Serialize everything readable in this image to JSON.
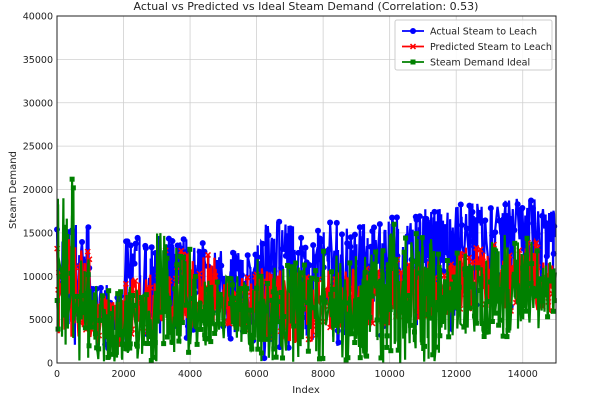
{
  "chart_data": {
    "type": "line",
    "title": "Actual vs Predicted vs Ideal Steam Demand (Correlation: 0.53)",
    "xlabel": "Index",
    "ylabel": "Steam Demand",
    "xlim": [
      0,
      15000
    ],
    "ylim": [
      0,
      40000
    ],
    "xticks": [
      0,
      2000,
      4000,
      6000,
      8000,
      10000,
      12000,
      14000
    ],
    "yticks": [
      0,
      5000,
      10000,
      15000,
      20000,
      25000,
      30000,
      35000,
      40000
    ],
    "grid": true,
    "legend_position": "top-right",
    "segment_index_step": 500,
    "series": [
      {
        "name": "Actual Steam to Leach",
        "color": "#0000ff",
        "marker": "circle",
        "ranges": [
          [
            1000,
            16000
          ],
          [
            1500,
            16500
          ],
          [
            500,
            9000
          ],
          [
            1000,
            8000
          ],
          [
            2000,
            14500
          ],
          [
            1500,
            14000
          ],
          [
            1000,
            15000
          ],
          [
            1500,
            14500
          ],
          [
            2000,
            14000
          ],
          [
            2000,
            13500
          ],
          [
            1000,
            13000
          ],
          [
            1500,
            12500
          ],
          [
            0,
            17000
          ],
          [
            0,
            16500
          ],
          [
            0,
            16000
          ],
          [
            0,
            15500
          ],
          [
            0,
            16500
          ],
          [
            0,
            16000
          ],
          [
            0,
            16000
          ],
          [
            0,
            16500
          ],
          [
            2000,
            17500
          ],
          [
            2500,
            17000
          ],
          [
            3000,
            18000
          ],
          [
            3000,
            18000
          ],
          [
            5000,
            18500
          ],
          [
            5000,
            18500
          ],
          [
            5000,
            19000
          ],
          [
            5000,
            19000
          ],
          [
            5000,
            19000
          ],
          [
            5000,
            18000
          ]
        ]
      },
      {
        "name": "Predicted Steam to Leach",
        "color": "#ff0000",
        "marker": "x",
        "ranges": [
          [
            3000,
            14500
          ],
          [
            3000,
            14000
          ],
          [
            2000,
            8000
          ],
          [
            2000,
            7500
          ],
          [
            3000,
            10000
          ],
          [
            3000,
            10500
          ],
          [
            4000,
            13500
          ],
          [
            4000,
            13000
          ],
          [
            4000,
            13000
          ],
          [
            4000,
            12500
          ],
          [
            3000,
            10000
          ],
          [
            3000,
            10000
          ],
          [
            2000,
            11000
          ],
          [
            2500,
            11000
          ],
          [
            2000,
            10500
          ],
          [
            2000,
            10500
          ],
          [
            4000,
            11000
          ],
          [
            4000,
            11000
          ],
          [
            4000,
            11000
          ],
          [
            4000,
            11000
          ],
          [
            5000,
            12000
          ],
          [
            5000,
            12000
          ],
          [
            5000,
            12000
          ],
          [
            5000,
            12000
          ],
          [
            6000,
            13500
          ],
          [
            6000,
            13500
          ],
          [
            6000,
            14000
          ],
          [
            6000,
            13500
          ],
          [
            6000,
            14000
          ],
          [
            6000,
            12000
          ]
        ]
      },
      {
        "name": "Steam Demand Ideal",
        "color": "#008000",
        "marker": "square",
        "ranges": [
          [
            0,
            21500
          ],
          [
            0,
            12000
          ],
          [
            0,
            9000
          ],
          [
            0,
            8500
          ],
          [
            0,
            9000
          ],
          [
            0,
            8500
          ],
          [
            1000,
            15500
          ],
          [
            1000,
            14000
          ],
          [
            2000,
            10000
          ],
          [
            2000,
            9500
          ],
          [
            2000,
            10000
          ],
          [
            1500,
            9500
          ],
          [
            0,
            12000
          ],
          [
            0,
            11500
          ],
          [
            0,
            12000
          ],
          [
            0,
            11000
          ],
          [
            0,
            13000
          ],
          [
            0,
            12500
          ],
          [
            0,
            12500
          ],
          [
            0,
            13000
          ],
          [
            0,
            16000
          ],
          [
            0,
            15500
          ],
          [
            0,
            14500
          ],
          [
            3000,
            12000
          ],
          [
            3000,
            13000
          ],
          [
            3000,
            12500
          ],
          [
            3000,
            15000
          ],
          [
            2500,
            14000
          ],
          [
            4000,
            14500
          ],
          [
            5000,
            12000
          ]
        ]
      }
    ]
  }
}
